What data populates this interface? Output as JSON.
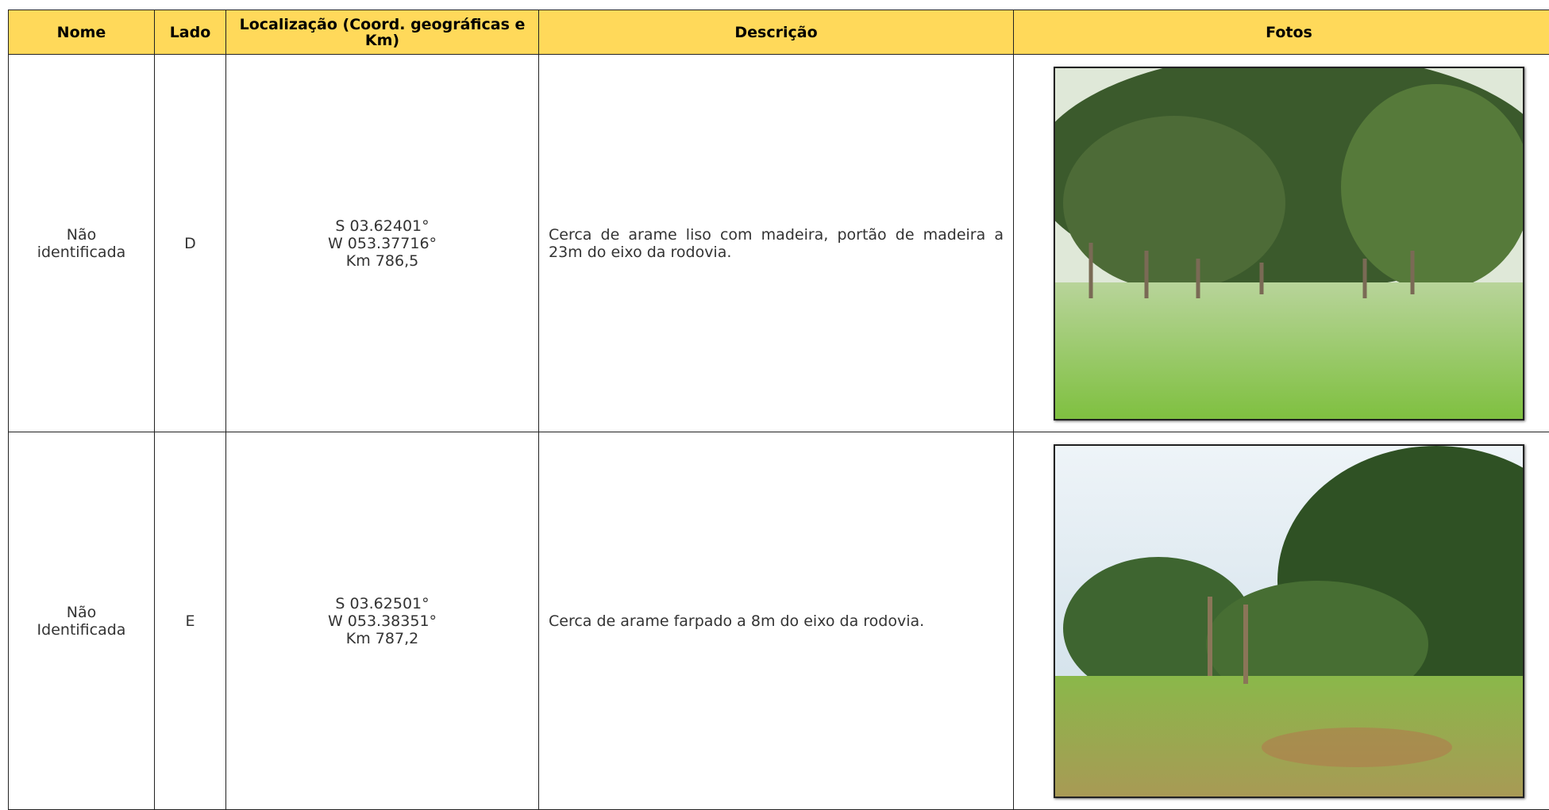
{
  "table": {
    "header": [
      "Nome",
      "Lado",
      "Localização (Coord. geográficas e Km)",
      "Descrição",
      "Fotos"
    ],
    "rows": [
      [
        [
          "Não",
          "identificada"
        ],
        "D",
        [
          "S 03.62401°",
          "W 053.37716°",
          "Km 786,5"
        ],
        "Cerca de arame liso com madeira, portão de madeira a 23m do eixo da rodovia."
      ],
      [
        [
          "Não",
          "Identificada"
        ],
        "E",
        [
          "S 03.62501°",
          "W 053.38351°",
          "Km 787,2"
        ],
        "Cerca de arame farpado a 8m do eixo da rodovia."
      ]
    ]
  }
}
